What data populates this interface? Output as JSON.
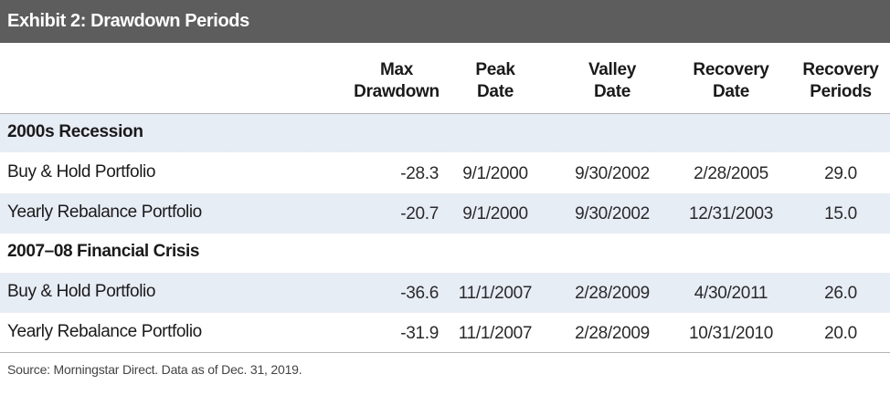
{
  "header": {
    "title": "Exhibit 2: Drawdown Periods"
  },
  "columns": [
    {
      "line1": "Max",
      "line2": "Drawdown"
    },
    {
      "line1": "Peak",
      "line2": "Date"
    },
    {
      "line1": "Valley",
      "line2": "Date"
    },
    {
      "line1": "Recovery",
      "line2": "Date"
    },
    {
      "line1": "Recovery",
      "line2": "Periods"
    }
  ],
  "sections": [
    {
      "title": "2000s Recession",
      "rows": [
        {
          "label": "Buy & Hold Portfolio",
          "values": [
            "-28.3",
            "9/1/2000",
            "9/30/2002",
            "2/28/2005",
            "29.0"
          ]
        },
        {
          "label": "Yearly Rebalance Portfolio",
          "values": [
            "-20.7",
            "9/1/2000",
            "9/30/2002",
            "12/31/2003",
            "15.0"
          ]
        }
      ]
    },
    {
      "title": "2007–08 Financial Crisis",
      "rows": [
        {
          "label": "Buy & Hold Portfolio",
          "values": [
            "-36.6",
            "11/1/2007",
            "2/28/2009",
            "4/30/2011",
            "26.0"
          ]
        },
        {
          "label": "Yearly Rebalance Portfolio",
          "values": [
            "-31.9",
            "11/1/2007",
            "2/28/2009",
            "10/31/2010",
            "20.0"
          ]
        }
      ]
    }
  ],
  "footer": {
    "source": "Source: Morningstar Direct. Data as of Dec. 31, 2019."
  },
  "colors": {
    "header_bg": "#5d5d5d",
    "band_bg": "#e7edf5",
    "text": "#1a1a1a"
  }
}
